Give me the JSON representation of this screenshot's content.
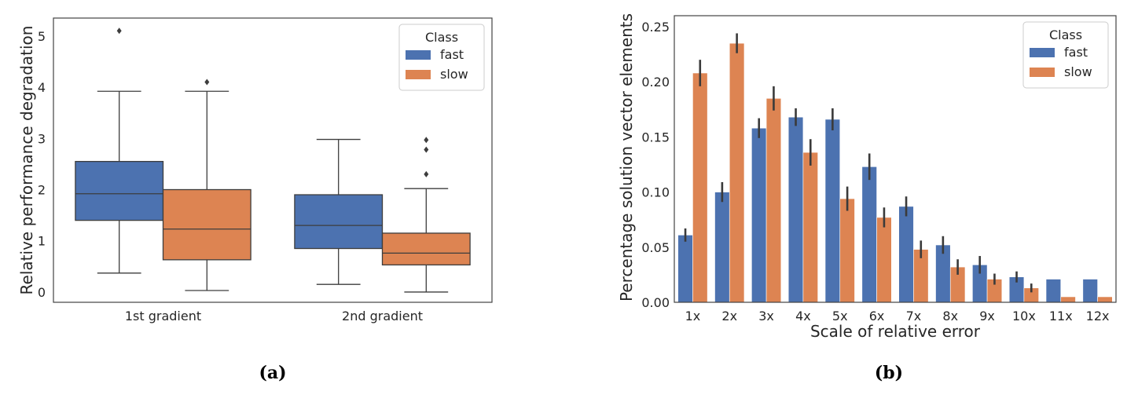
{
  "colors": {
    "fast": "#4c72b0",
    "slow": "#dd8452",
    "frame": "#444444",
    "text": "#262626",
    "errbar": "#3a3a3a",
    "line": "#3d3d3d"
  },
  "chart_data": [
    {
      "type": "box",
      "panel_label": "(a)",
      "ylabel": "Relative performance degradation",
      "xlabel": "",
      "ylim": [
        -0.2,
        5.35
      ],
      "yticks": [
        0,
        1,
        2,
        3,
        4,
        5
      ],
      "categories": [
        "1st gradient",
        "2nd gradient"
      ],
      "grid": false,
      "legend": {
        "title": "Class",
        "entries": [
          "fast",
          "slow"
        ],
        "position": "top-right"
      },
      "series": [
        {
          "name": "fast",
          "boxes": [
            {
              "whislo": 0.37,
              "q1": 1.4,
              "med": 1.92,
              "q3": 2.55,
              "whishi": 3.92,
              "fliers": [
                5.1
              ]
            },
            {
              "whislo": 0.15,
              "q1": 0.85,
              "med": 1.3,
              "q3": 1.9,
              "whishi": 2.98,
              "fliers": []
            }
          ]
        },
        {
          "name": "slow",
          "boxes": [
            {
              "whislo": 0.03,
              "q1": 0.63,
              "med": 1.23,
              "q3": 2.0,
              "whishi": 3.92,
              "fliers": [
                4.1
              ]
            },
            {
              "whislo": 0.0,
              "q1": 0.53,
              "med": 0.76,
              "q3": 1.15,
              "whishi": 2.02,
              "fliers": [
                2.3,
                2.78,
                2.97
              ]
            }
          ]
        }
      ]
    },
    {
      "type": "bar",
      "panel_label": "(b)",
      "xlabel": "Scale of relative error",
      "ylabel": "Percentage solution vector elements",
      "ylim": [
        0,
        0.26
      ],
      "yticks": [
        "0.00",
        "0.05",
        "0.10",
        "0.15",
        "0.20",
        "0.25"
      ],
      "categories": [
        "1x",
        "2x",
        "3x",
        "4x",
        "5x",
        "6x",
        "7x",
        "8x",
        "9x",
        "10x",
        "11x",
        "12x"
      ],
      "grid": false,
      "legend": {
        "title": "Class",
        "entries": [
          "fast",
          "slow"
        ],
        "position": "top-right"
      },
      "series": [
        {
          "name": "fast",
          "values": [
            0.061,
            0.1,
            0.158,
            0.168,
            0.166,
            0.123,
            0.087,
            0.052,
            0.034,
            0.023,
            0.021,
            0.021
          ],
          "err": [
            0.006,
            0.009,
            0.009,
            0.008,
            0.01,
            0.012,
            0.009,
            0.008,
            0.008,
            0.005,
            0,
            0
          ]
        },
        {
          "name": "slow",
          "values": [
            0.208,
            0.235,
            0.185,
            0.136,
            0.094,
            0.077,
            0.048,
            0.032,
            0.021,
            0.013,
            0.005,
            0.005
          ],
          "err": [
            0.012,
            0.009,
            0.011,
            0.012,
            0.011,
            0.009,
            0.008,
            0.007,
            0.005,
            0.004,
            0,
            0
          ]
        }
      ]
    }
  ]
}
